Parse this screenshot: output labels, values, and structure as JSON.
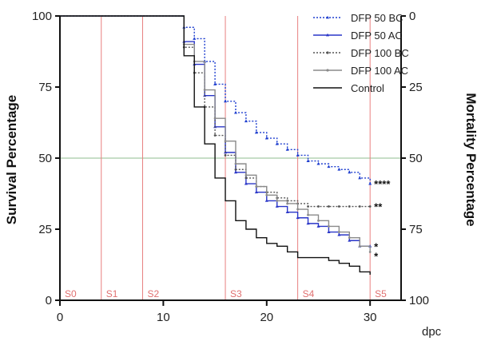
{
  "chart_data": {
    "type": "line",
    "step": true,
    "xlabel": "dpc",
    "ylabel": "Survival Percentage",
    "ylabel_right": "Mortality Percentage",
    "xlim": [
      0,
      33
    ],
    "ylim": [
      0,
      100
    ],
    "x_ticks": [
      0,
      10,
      20,
      30
    ],
    "y_ticks": [
      0,
      25,
      50,
      75,
      100
    ],
    "y_ticks_right": [
      "100",
      "75",
      "50",
      "25",
      "0"
    ],
    "reference_line_y": 50,
    "reference_line_color": "#8fbc8f",
    "stages": [
      {
        "label": "S0",
        "x": 0
      },
      {
        "label": "S1",
        "x": 4
      },
      {
        "label": "S2",
        "x": 8
      },
      {
        "label": "S3",
        "x": 16
      },
      {
        "label": "S4",
        "x": 23
      },
      {
        "label": "S5",
        "x": 30
      }
    ],
    "stage_line_color": "#e88080",
    "legend_position": "top-right",
    "series": [
      {
        "name": "DFP 50 BC",
        "color": "#1f3fcf",
        "dash": "2,2",
        "marker": "triangle",
        "x": [
          0,
          12,
          13,
          14,
          15,
          16,
          17,
          18,
          19,
          20,
          21,
          22,
          23,
          24,
          25,
          26,
          27,
          28,
          29,
          30
        ],
        "y": [
          100,
          96,
          92,
          84,
          76,
          70,
          66,
          63,
          59,
          57,
          55,
          53,
          51,
          49,
          48,
          47,
          46,
          45,
          43,
          41
        ],
        "significance": "****"
      },
      {
        "name": "DFP 50 AC",
        "color": "#2a36c8",
        "dash": "",
        "marker": "triangle",
        "x": [
          0,
          12,
          13,
          14,
          15,
          16,
          17,
          18,
          19,
          20,
          21,
          22,
          23,
          24,
          25,
          26,
          27,
          28,
          29,
          30
        ],
        "y": [
          100,
          91,
          83,
          72,
          61,
          52,
          45,
          41,
          38,
          35,
          33,
          31,
          29,
          27,
          26,
          24,
          23,
          21,
          19,
          19
        ],
        "significance": "*"
      },
      {
        "name": "DFP 100 BC",
        "color": "#555555",
        "dash": "2,2",
        "marker": "circle",
        "x": [
          0,
          12,
          13,
          14,
          15,
          16,
          17,
          18,
          19,
          20,
          21,
          22,
          23,
          24,
          25,
          26,
          27,
          28,
          29,
          30
        ],
        "y": [
          100,
          89,
          80,
          68,
          58,
          51,
          46,
          43,
          40,
          38,
          36,
          35,
          34,
          33,
          33,
          33,
          33,
          33,
          33,
          33
        ],
        "significance": "**"
      },
      {
        "name": "DFP 100 AC",
        "color": "#8a8a8a",
        "dash": "",
        "marker": "circle",
        "x": [
          0,
          12,
          13,
          14,
          15,
          16,
          17,
          18,
          19,
          20,
          21,
          22,
          23,
          24,
          25,
          26,
          27,
          28,
          29,
          30
        ],
        "y": [
          100,
          90,
          84,
          74,
          64,
          56,
          48,
          44,
          40,
          37,
          35,
          34,
          32,
          30,
          28,
          26,
          24,
          22,
          19,
          17
        ],
        "significance": "*"
      },
      {
        "name": "Control",
        "color": "#111111",
        "dash": "",
        "marker": "none",
        "x": [
          0,
          12,
          13,
          14,
          15,
          16,
          17,
          18,
          19,
          20,
          21,
          22,
          23,
          24,
          25,
          26,
          27,
          28,
          29,
          30
        ],
        "y": [
          100,
          86,
          68,
          55,
          43,
          35,
          28,
          25,
          22,
          20,
          19,
          17,
          15,
          15,
          15,
          14,
          13,
          12,
          10,
          9
        ],
        "significance": ""
      }
    ]
  }
}
